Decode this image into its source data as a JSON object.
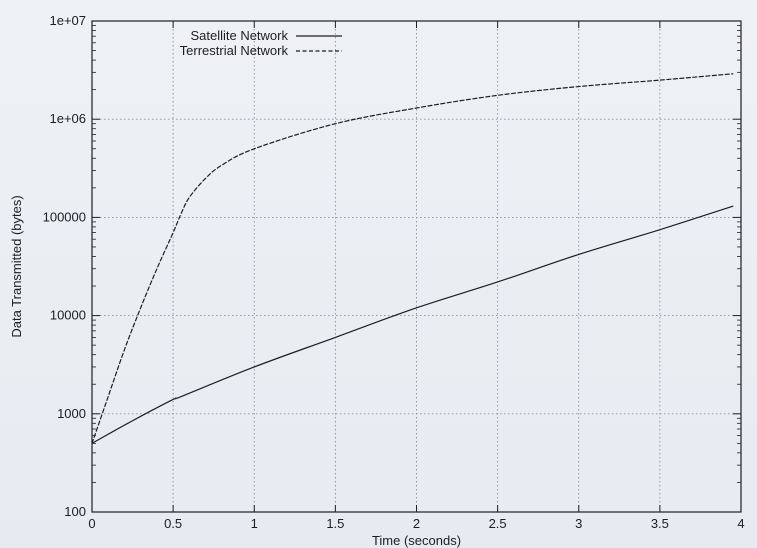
{
  "chart_data": {
    "type": "line",
    "title": "",
    "xlabel": "Time (seconds)",
    "ylabel": "Data Transmitted (bytes)",
    "xlim": [
      0,
      4
    ],
    "ylim": [
      100,
      10000000
    ],
    "yscale": "log",
    "grid": true,
    "legend": "top-left",
    "x_ticks": [
      0,
      0.5,
      1,
      1.5,
      2,
      2.5,
      3,
      3.5,
      4
    ],
    "x_tick_labels": [
      "0",
      "0.5",
      "1",
      "1.5",
      "2",
      "2.5",
      "3",
      "3.5",
      "4"
    ],
    "y_ticks": [
      100,
      1000,
      10000,
      100000,
      1000000,
      10000000
    ],
    "y_tick_labels": [
      "100",
      "1000",
      "10000",
      "100000",
      "1e+06",
      "1e+07"
    ],
    "series": [
      {
        "name": "Satellite Network",
        "style": "solid",
        "color": "#1d1d22",
        "x": [
          0,
          0.25,
          0.5,
          0.55,
          1,
          1.5,
          2,
          2.5,
          3,
          3.5,
          3.95
        ],
        "y": [
          500,
          850,
          1400,
          1500,
          3000,
          6000,
          12000,
          22000,
          42000,
          75000,
          130000
        ]
      },
      {
        "name": "Terrestrial Network",
        "style": "dashed",
        "color": "#1d1d22",
        "x": [
          0,
          0.1,
          0.2,
          0.3,
          0.4,
          0.5,
          0.55,
          0.6,
          0.7,
          0.8,
          1,
          1.5,
          2,
          2.5,
          3,
          3.5,
          3.95
        ],
        "y": [
          500,
          1500,
          4500,
          12000,
          30000,
          70000,
          110000,
          160000,
          250000,
          340000,
          500000,
          900000,
          1300000,
          1750000,
          2150000,
          2500000,
          2900000
        ]
      }
    ]
  }
}
